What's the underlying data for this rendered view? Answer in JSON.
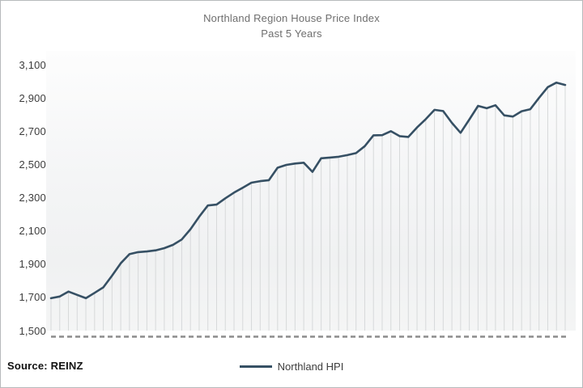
{
  "colors": {
    "line": "#365064",
    "dropline": "#d7d9da",
    "tick": "#8c8c8c",
    "title_text": "#6e6e6e",
    "axis_text": "#3c3c3c",
    "border": "#b7babc"
  },
  "footer": {
    "source": "Source: REINZ"
  },
  "chart_data": {
    "type": "line",
    "title": "Northland Region House Price Index",
    "subtitle": "Past 5 Years",
    "legend_position": "bottom-center",
    "grid": "vertical droplines from each point to x-axis; no horizontal gridlines",
    "x_axis_labels": "none (dashed tick marks only)",
    "ylim": [
      1500,
      3100
    ],
    "y_ticks": [
      1500,
      1700,
      1900,
      2100,
      2300,
      2500,
      2700,
      2900,
      3100
    ],
    "y_tick_labels": [
      "1,500",
      "1,700",
      "1,900",
      "2,100",
      "2,300",
      "2,500",
      "2,700",
      "2,900",
      "3,100"
    ],
    "x_unit": "monthly observations over 5 years (unlabeled)",
    "series": [
      {
        "name": "Northland HPI",
        "values": [
          1695,
          1705,
          1735,
          1715,
          1695,
          1727,
          1760,
          1830,
          1905,
          1960,
          1972,
          1976,
          1983,
          1996,
          2016,
          2048,
          2110,
          2185,
          2253,
          2258,
          2296,
          2330,
          2360,
          2390,
          2399,
          2405,
          2480,
          2497,
          2505,
          2510,
          2455,
          2537,
          2541,
          2546,
          2556,
          2568,
          2610,
          2675,
          2676,
          2700,
          2670,
          2665,
          2722,
          2772,
          2828,
          2821,
          2750,
          2690,
          2770,
          2852,
          2838,
          2856,
          2795,
          2788,
          2820,
          2832,
          2900,
          2965,
          2992,
          2978
        ]
      }
    ]
  }
}
